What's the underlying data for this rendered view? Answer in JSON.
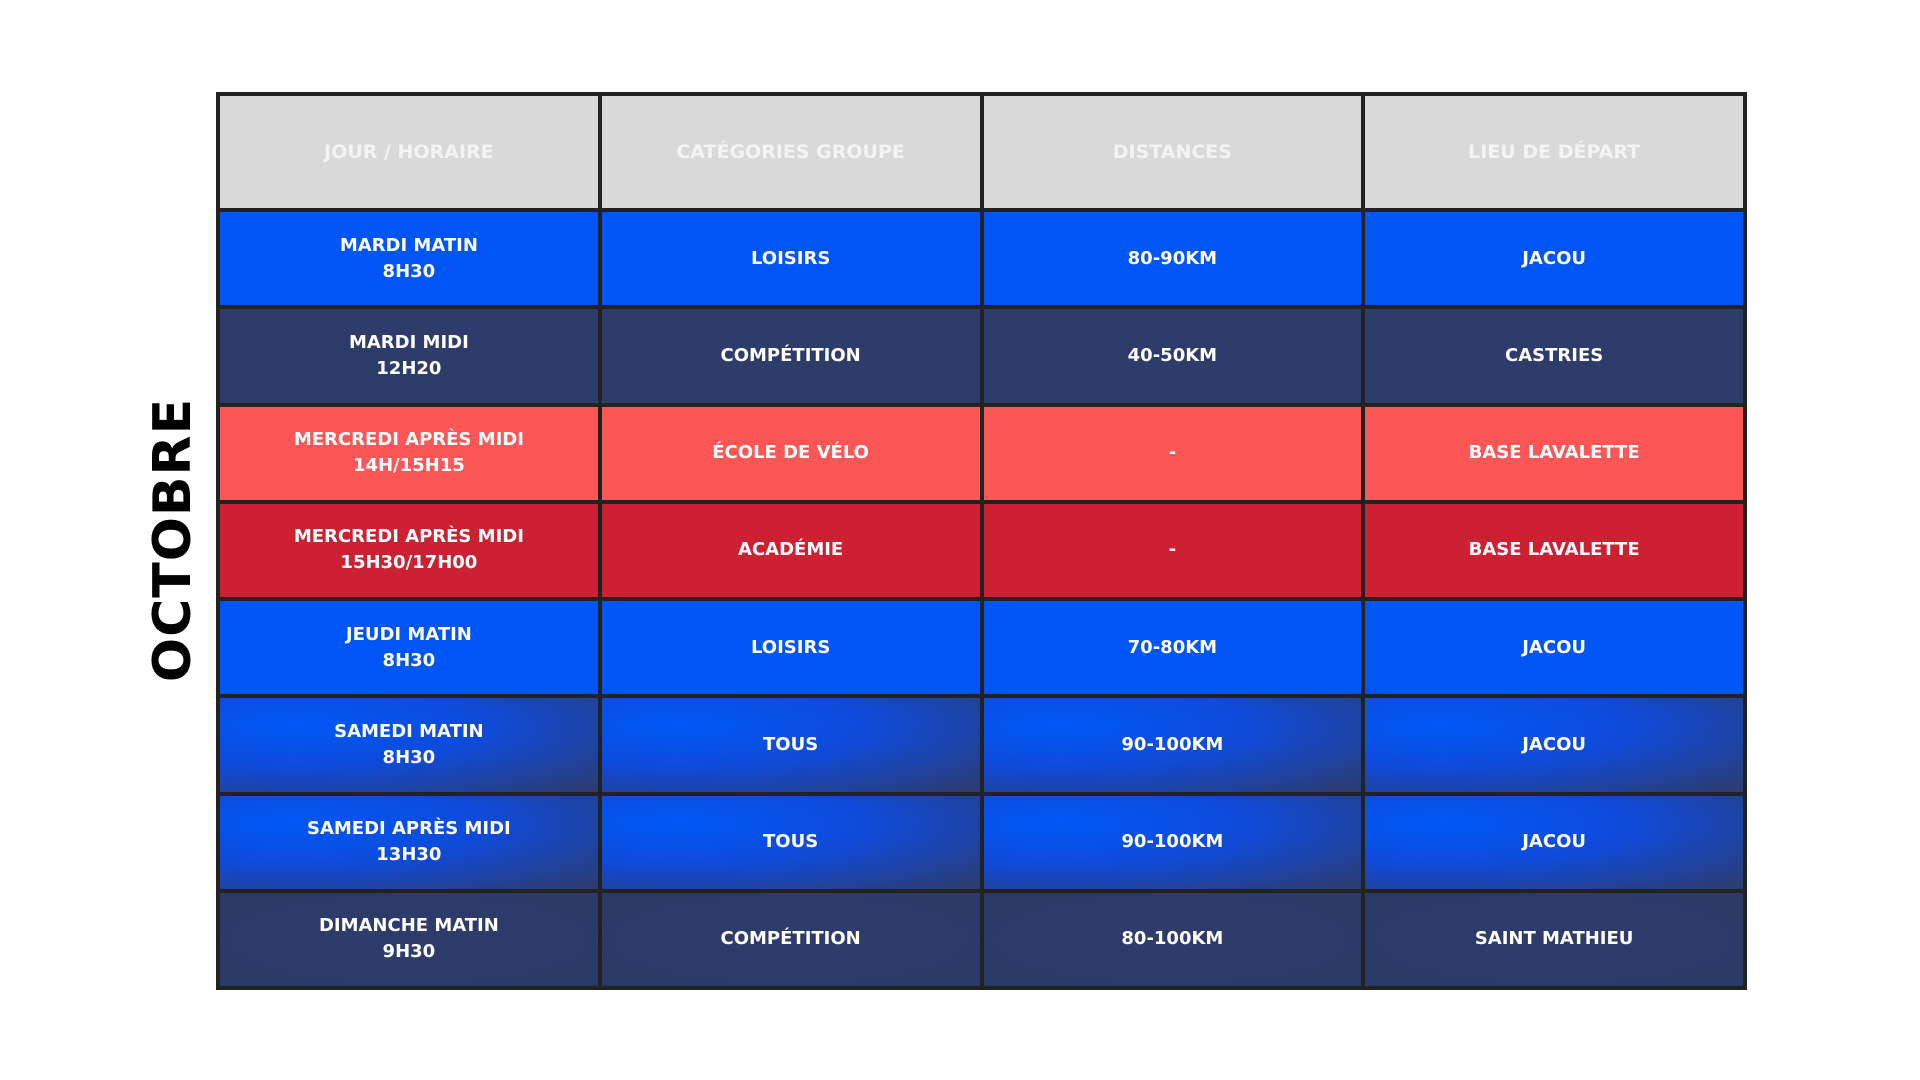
{
  "month": "OCTOBRE",
  "headers": [
    "JOUR / HORAIRE",
    "CATÉGORIES GROUPE",
    "DISTANCES",
    "LIEU DE DÉPART"
  ],
  "colors": {
    "blue": "#0055f5",
    "navy": "#2d3c6a",
    "coral": "#fd5656",
    "red": "#cc2133",
    "header_bg": "#d9d9d9",
    "border": "#222222"
  },
  "rows": [
    {
      "day": "MARDI MATIN",
      "time": "8H30",
      "category": "LOISIRS",
      "distance": "80-90KM",
      "start": "JACOU"
    },
    {
      "day": "MARDI MIDI",
      "time": "12H20",
      "category": "COMPÉTITION",
      "distance": "40-50KM",
      "start": "CASTRIES"
    },
    {
      "day": "MERCREDI APRÈS MIDI",
      "time": "14H/15H15",
      "category": "ÉCOLE DE VÉLO",
      "distance": "-",
      "start": "BASE LAVALETTE"
    },
    {
      "day": "MERCREDI APRÈS MIDI",
      "time": "15H30/17H00",
      "category": "ACADÉMIE",
      "distance": "-",
      "start": "BASE LAVALETTE"
    },
    {
      "day": "JEUDI MATIN",
      "time": "8H30",
      "category": "LOISIRS",
      "distance": "70-80KM",
      "start": "JACOU"
    },
    {
      "day": "SAMEDI MATIN",
      "time": "8H30",
      "category": "TOUS",
      "distance": "90-100KM",
      "start": "JACOU"
    },
    {
      "day": "SAMEDI APRÈS MIDI",
      "time": "13H30",
      "category": "TOUS",
      "distance": "90-100KM",
      "start": "JACOU"
    },
    {
      "day": "DIMANCHE MATIN",
      "time": "9H30",
      "category": "COMPÉTITION",
      "distance": "80-100KM",
      "start": "SAINT MATHIEU"
    }
  ]
}
